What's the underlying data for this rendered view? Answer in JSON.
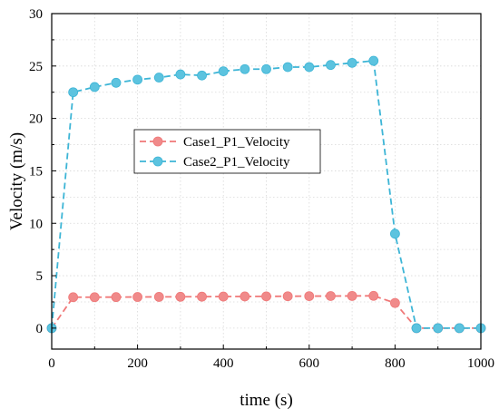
{
  "chart_data": {
    "type": "line",
    "xlabel": "time (s)",
    "ylabel": "Velocity (m/s)",
    "xlim": [
      0,
      1000
    ],
    "ylim": [
      -2,
      30
    ],
    "xticks": [
      0,
      200,
      400,
      600,
      800,
      1000
    ],
    "yticks": [
      0,
      5,
      10,
      15,
      20,
      25,
      30
    ],
    "grid": true,
    "legend_position": "center-left",
    "series": [
      {
        "name": "Case1_P1_Velocity",
        "color": "#f07878",
        "marker_color": "#f08a8a",
        "x": [
          0,
          50,
          100,
          150,
          200,
          250,
          300,
          350,
          400,
          450,
          500,
          550,
          600,
          650,
          700,
          750,
          800,
          850,
          900,
          950,
          1000
        ],
        "y": [
          0,
          2.95,
          2.95,
          2.96,
          2.97,
          2.98,
          2.99,
          3.0,
          3.01,
          3.02,
          3.03,
          3.04,
          3.05,
          3.06,
          3.07,
          3.08,
          2.4,
          0,
          0,
          0,
          0
        ]
      },
      {
        "name": "Case2_P1_Velocity",
        "color": "#3db5d6",
        "marker_color": "#5cc3df",
        "x": [
          0,
          50,
          100,
          150,
          200,
          250,
          300,
          350,
          400,
          450,
          500,
          550,
          600,
          650,
          700,
          750,
          800,
          850,
          900,
          950,
          1000
        ],
        "y": [
          0,
          22.5,
          23.0,
          23.4,
          23.7,
          23.9,
          24.2,
          24.1,
          24.5,
          24.7,
          24.7,
          24.9,
          24.9,
          25.1,
          25.3,
          25.5,
          9.0,
          0,
          0,
          0,
          0
        ]
      }
    ]
  }
}
